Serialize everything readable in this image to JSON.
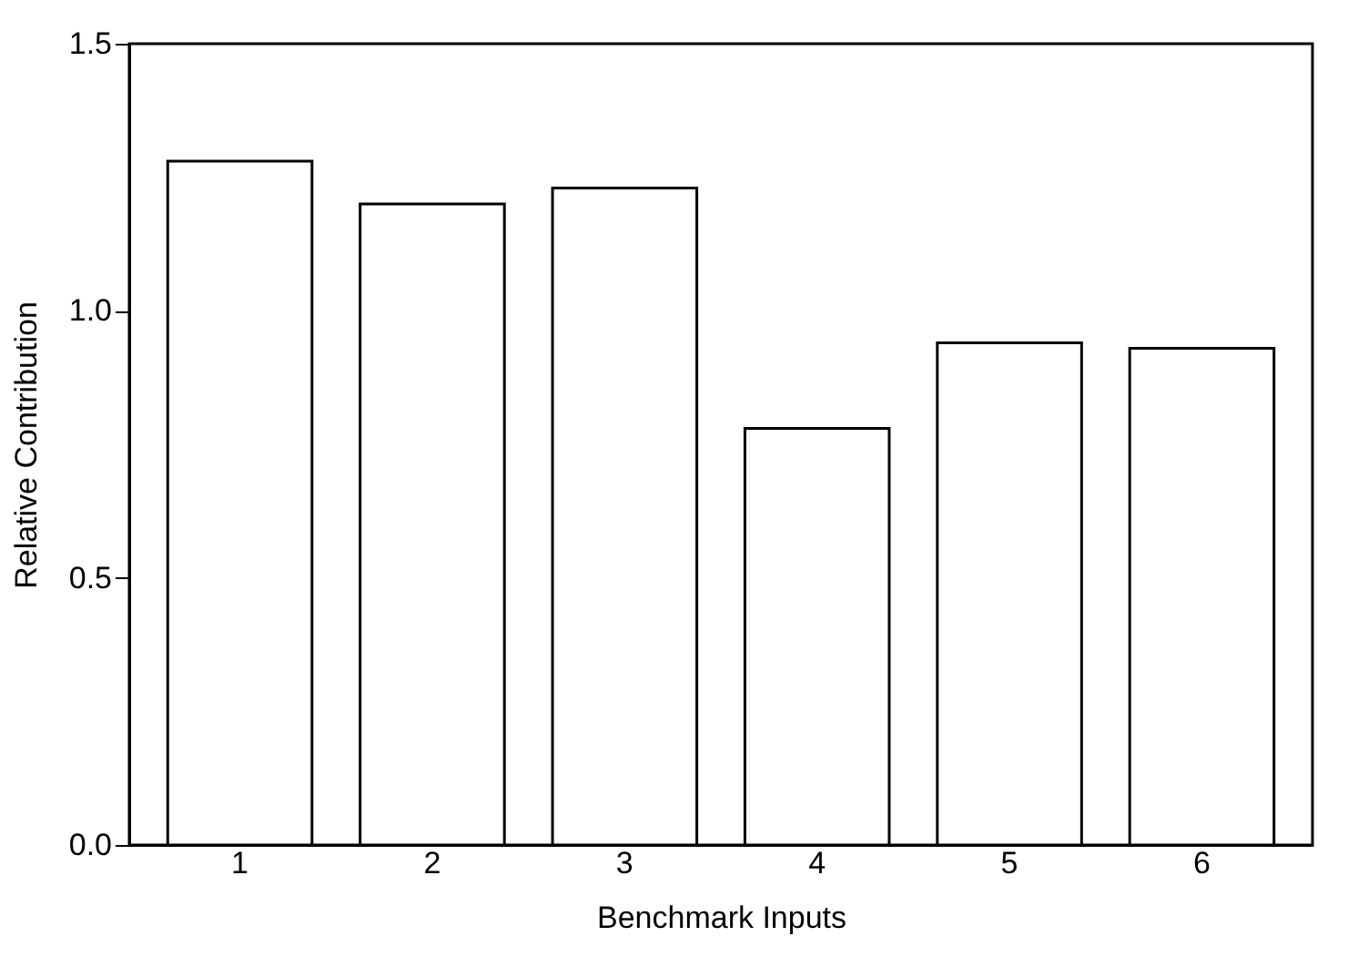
{
  "chart_data": {
    "type": "bar",
    "xlabel": "Benchmark Inputs",
    "ylabel": "Relative Contribution",
    "categories": [
      "1",
      "2",
      "3",
      "4",
      "5",
      "6"
    ],
    "values": [
      1.28,
      1.2,
      1.23,
      0.78,
      0.94,
      0.93
    ],
    "color": "#ffffff",
    "ylim": [
      0,
      1.5
    ],
    "yticks": [
      {
        "value": 0,
        "label": "0.0"
      },
      {
        "value": 0.5,
        "label": "0.5"
      },
      {
        "value": 1,
        "label": "1.0"
      },
      {
        "value": 1.5,
        "label": "1.5"
      }
    ],
    "grid": false
  }
}
